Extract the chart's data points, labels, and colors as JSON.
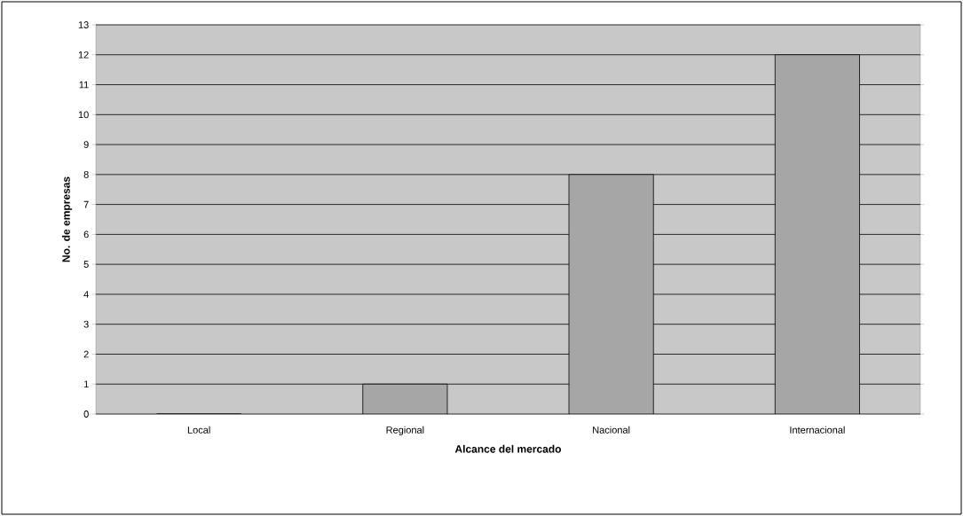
{
  "chart_data": {
    "type": "bar",
    "categories": [
      "Local",
      "Regional",
      "Nacional",
      "Internacional"
    ],
    "values": [
      0,
      1,
      8,
      12
    ],
    "color": "#a6a6a6",
    "xlabel": "Alcance del mercado",
    "ylabel": "No. de empresas",
    "ylim": [
      0,
      13
    ],
    "yticks": [
      0,
      1,
      2,
      3,
      4,
      5,
      6,
      7,
      8,
      9,
      10,
      11,
      12,
      13
    ],
    "grid": "y"
  }
}
